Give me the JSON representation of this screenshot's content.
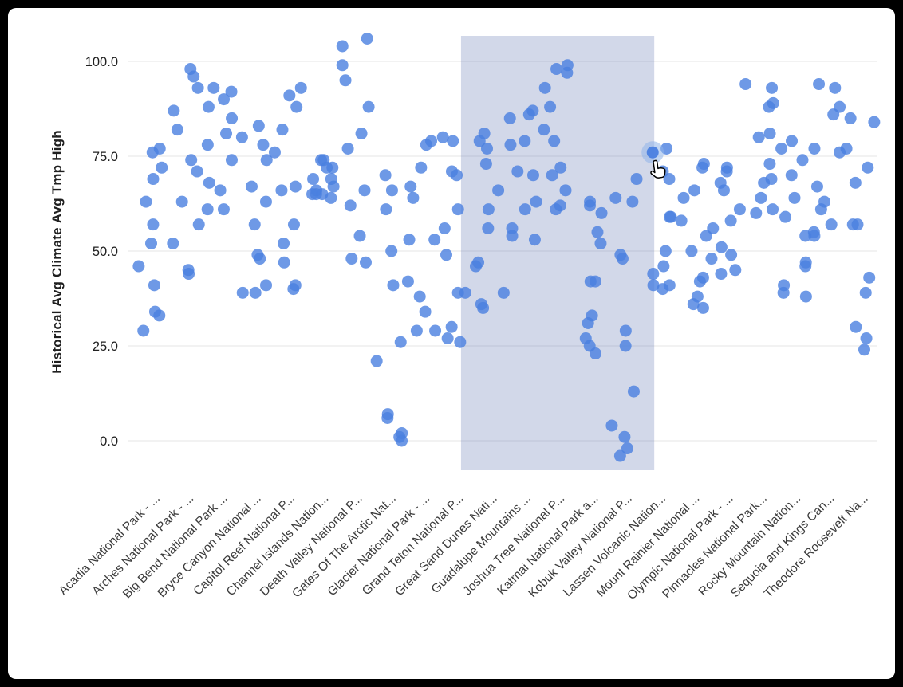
{
  "window": {
    "background": "#000000",
    "canvas_background": "#ffffff"
  },
  "colors": {
    "point": "#4a80e0",
    "point_opacity": 0.8,
    "selection_fill": "#6a7fb5",
    "selection_opacity": 0.3,
    "grid": "#e4e4e4",
    "y_tick_text": "#212121",
    "x_label_text": "#3c3c3c",
    "hover_halo": "#8fb4ea"
  },
  "chart_data": {
    "type": "scatter",
    "title": "",
    "legend": "none",
    "grid": true,
    "y_axis": {
      "title_normal": "Historical Avg Climate",
      "title_bold": "Avg Tmp High",
      "ticks": [
        {
          "label": "100.0",
          "value": 100
        },
        {
          "label": "75.0",
          "value": 75
        },
        {
          "label": "50.0",
          "value": 50
        },
        {
          "label": "25.0",
          "value": 25
        },
        {
          "label": "0.0",
          "value": 0
        }
      ],
      "range": [
        -8,
        107
      ]
    },
    "categories": [
      "Acadia National Park - ...",
      "Arches National Park - ...",
      "Big Bend National Park ...",
      "Bryce Canyon National ...",
      "Capitol Reef National P...",
      "Channel Islands Nation...",
      "Death Valley National P...",
      "Gates Of The Arctic Nat...",
      "Glacier National Park - ...",
      "Grand Teton National P...",
      "Great Sand Dunes Nati...",
      "Guadalupe Mountains ...",
      "Joshua Tree National P...",
      "Katmai National Park a...",
      "Kobuk Valley National P...",
      "Lassen Volcanic Nation...",
      "Mount Rainier National ...",
      "Olympic National Park - ...",
      "Pinnacles National Park...",
      "Rocky Mountain Nation...",
      "Sequoia and Kings Can...",
      "Theodore Roosevelt Na..."
    ],
    "values_per_category": [
      [
        29,
        33,
        41,
        52,
        63,
        72,
        77,
        76,
        69,
        57,
        46,
        34
      ],
      [
        44,
        52,
        63,
        71,
        82,
        93,
        98,
        96,
        87,
        74,
        57,
        45
      ],
      [
        61,
        66,
        74,
        81,
        88,
        93,
        92,
        90,
        85,
        78,
        68,
        61
      ],
      [
        39,
        41,
        48,
        57,
        67,
        78,
        83,
        80,
        74,
        63,
        49,
        39
      ],
      [
        40,
        47,
        57,
        66,
        76,
        88,
        93,
        91,
        82,
        67,
        52,
        41
      ],
      [
        65,
        64,
        65,
        66,
        67,
        69,
        72,
        74,
        74,
        72,
        69,
        65
      ],
      [
        47,
        54,
        66,
        77,
        88,
        99,
        106,
        104,
        95,
        81,
        62,
        48
      ],
      [
        0,
        2,
        7,
        21,
        41,
        61,
        70,
        66,
        50,
        26,
        6,
        1
      ],
      [
        29,
        34,
        42,
        53,
        64,
        72,
        79,
        78,
        67,
        53,
        38,
        29
      ],
      [
        26,
        30,
        39,
        49,
        61,
        71,
        80,
        79,
        70,
        56,
        39,
        27
      ],
      [
        35,
        39,
        47,
        56,
        66,
        77,
        81,
        79,
        73,
        61,
        46,
        36
      ],
      [
        53,
        56,
        63,
        71,
        78,
        86,
        87,
        85,
        79,
        70,
        61,
        54
      ],
      [
        62,
        66,
        72,
        79,
        88,
        97,
        99,
        98,
        93,
        82,
        70,
        61
      ],
      [
        23,
        27,
        33,
        42,
        52,
        60,
        63,
        62,
        55,
        42,
        31,
        25
      ],
      [
        -4,
        1,
        13,
        29,
        48,
        64,
        69,
        63,
        49,
        25,
        4,
        -2
      ],
      [
        41,
        41,
        44,
        50,
        59,
        69,
        76,
        77,
        71,
        59,
        46,
        40
      ],
      [
        35,
        38,
        43,
        50,
        58,
        64,
        72,
        73,
        66,
        54,
        42,
        36
      ],
      [
        45,
        48,
        51,
        56,
        61,
        66,
        71,
        72,
        68,
        58,
        49,
        44
      ],
      [
        61,
        64,
        68,
        73,
        80,
        88,
        94,
        93,
        89,
        81,
        69,
        60
      ],
      [
        39,
        41,
        47,
        54,
        64,
        74,
        79,
        77,
        70,
        59,
        46,
        38
      ],
      [
        55,
        57,
        61,
        67,
        76,
        86,
        94,
        93,
        88,
        77,
        63,
        54
      ],
      [
        24,
        30,
        43,
        57,
        68,
        77,
        85,
        84,
        72,
        57,
        39,
        27
      ]
    ]
  },
  "selection": {
    "from_category_index": 10,
    "to_category_index": 15
  },
  "hover": {
    "category_index": 15,
    "point_index": 6,
    "value": 76
  },
  "cursor": {
    "icon": "hand-pointer-icon"
  }
}
